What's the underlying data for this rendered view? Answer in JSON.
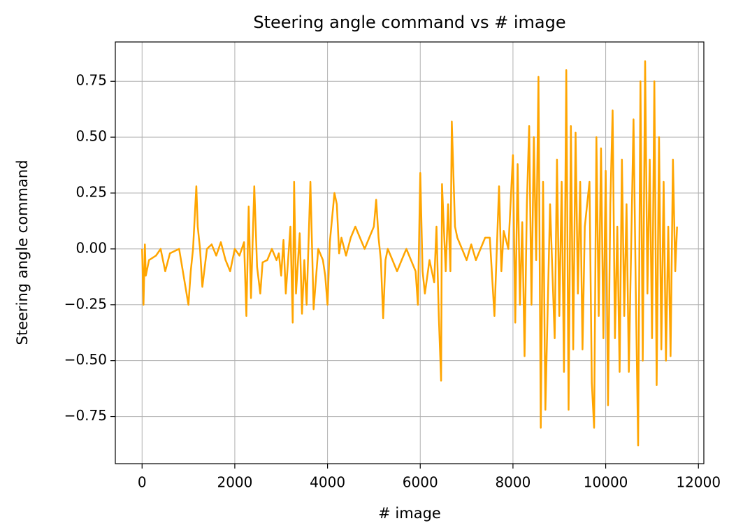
{
  "chart_data": {
    "type": "line",
    "title": "Steering angle command vs # image",
    "x_label": "# image",
    "y_label": "Steering angle command",
    "xlim": [
      -577,
      12117
    ],
    "ylim": [
      -0.961,
      0.926
    ],
    "xticks": [
      0,
      2000,
      4000,
      6000,
      8000,
      10000,
      12000
    ],
    "yticks": [
      {
        "value": -0.75,
        "label": "−0.75"
      },
      {
        "value": -0.5,
        "label": "−0.50"
      },
      {
        "value": -0.25,
        "label": "−0.25"
      },
      {
        "value": 0,
        "label": "0.00"
      },
      0.25,
      {
        "value": 0.5,
        "label": "0.50"
      },
      0.75
    ],
    "grid": true,
    "series": [
      {
        "color": "#ffa500",
        "x": [
          0,
          30,
          60,
          80,
          150,
          300,
          400,
          500,
          600,
          800,
          1000,
          1050,
          1100,
          1170,
          1200,
          1250,
          1300,
          1400,
          1500,
          1600,
          1700,
          1800,
          1900,
          2000,
          2100,
          2200,
          2250,
          2300,
          2350,
          2420,
          2480,
          2550,
          2600,
          2700,
          2800,
          2900,
          2950,
          3000,
          3050,
          3100,
          3150,
          3200,
          3250,
          3280,
          3320,
          3400,
          3450,
          3500,
          3550,
          3630,
          3700,
          3800,
          3900,
          3950,
          4000,
          4050,
          4150,
          4200,
          4250,
          4300,
          4400,
          4500,
          4600,
          4700,
          4800,
          4900,
          5000,
          5050,
          5100,
          5150,
          5200,
          5250,
          5300,
          5400,
          5500,
          5600,
          5700,
          5800,
          5900,
          5950,
          6000,
          6050,
          6100,
          6200,
          6300,
          6350,
          6400,
          6450,
          6470,
          6550,
          6600,
          6650,
          6680,
          6750,
          6800,
          6900,
          7000,
          7100,
          7200,
          7300,
          7400,
          7500,
          7600,
          7700,
          7750,
          7800,
          7900,
          8000,
          8050,
          8100,
          8150,
          8200,
          8250,
          8300,
          8350,
          8400,
          8450,
          8500,
          8550,
          8600,
          8650,
          8700,
          8800,
          8850,
          8900,
          8950,
          9000,
          9050,
          9100,
          9150,
          9200,
          9250,
          9300,
          9350,
          9400,
          9450,
          9500,
          9550,
          9650,
          9700,
          9750,
          9800,
          9850,
          9900,
          9950,
          10000,
          10050,
          10100,
          10150,
          10200,
          10250,
          10300,
          10350,
          10400,
          10450,
          10500,
          10600,
          10650,
          10700,
          10750,
          10800,
          10850,
          10900,
          10950,
          11000,
          11050,
          11100,
          11150,
          11200,
          11250,
          11300,
          11350,
          11400,
          11450,
          11500,
          11540
        ],
        "values": [
          0,
          -0.25,
          0.02,
          -0.12,
          -0.05,
          -0.03,
          0,
          -0.1,
          -0.02,
          0,
          -0.25,
          -0.1,
          0,
          0.28,
          0.1,
          0,
          -0.17,
          0,
          0.02,
          -0.03,
          0.03,
          -0.05,
          -0.1,
          0,
          -0.03,
          0.03,
          -0.3,
          0.19,
          -0.22,
          0.28,
          -0.08,
          -0.2,
          -0.06,
          -0.05,
          0,
          -0.05,
          -0.02,
          -0.12,
          0.04,
          -0.2,
          -0.05,
          0.1,
          -0.33,
          0.3,
          -0.2,
          0.07,
          -0.29,
          -0.05,
          -0.25,
          0.3,
          -0.27,
          0,
          -0.05,
          -0.12,
          -0.25,
          0.03,
          0.25,
          0.2,
          -0.02,
          0.05,
          -0.03,
          0.05,
          0.1,
          0.05,
          0,
          0.05,
          0.1,
          0.22,
          0.05,
          -0.05,
          -0.31,
          -0.05,
          0,
          -0.05,
          -0.1,
          -0.05,
          0,
          -0.05,
          -0.1,
          -0.25,
          0.34,
          -0.1,
          -0.2,
          -0.05,
          -0.15,
          0.1,
          -0.3,
          -0.59,
          0.29,
          -0.1,
          0.2,
          -0.1,
          0.57,
          0.1,
          0.05,
          0,
          -0.05,
          0.02,
          -0.05,
          0,
          0.05,
          0.05,
          -0.3,
          0.28,
          -0.1,
          0.08,
          0,
          0.42,
          -0.33,
          0.38,
          -0.25,
          0.12,
          -0.48,
          0.2,
          0.55,
          -0.25,
          0.5,
          -0.05,
          0.77,
          -0.8,
          0.3,
          -0.72,
          0.2,
          -0.1,
          -0.4,
          0.4,
          -0.3,
          0.3,
          -0.55,
          0.8,
          -0.72,
          0.55,
          -0.45,
          0.52,
          -0.2,
          0.3,
          -0.45,
          0.1,
          0.3,
          -0.6,
          -0.8,
          0.5,
          -0.3,
          0.45,
          -0.4,
          0.35,
          -0.7,
          0.2,
          0.62,
          -0.4,
          0.1,
          -0.55,
          0.4,
          -0.3,
          0.2,
          -0.55,
          0.58,
          -0.2,
          -0.88,
          0.75,
          -0.5,
          0.84,
          -0.2,
          0.4,
          -0.4,
          0.75,
          -0.61,
          0.5,
          -0.45,
          0.3,
          -0.5,
          0.1,
          -0.48,
          0.4,
          -0.1,
          0.1
        ]
      }
    ]
  }
}
